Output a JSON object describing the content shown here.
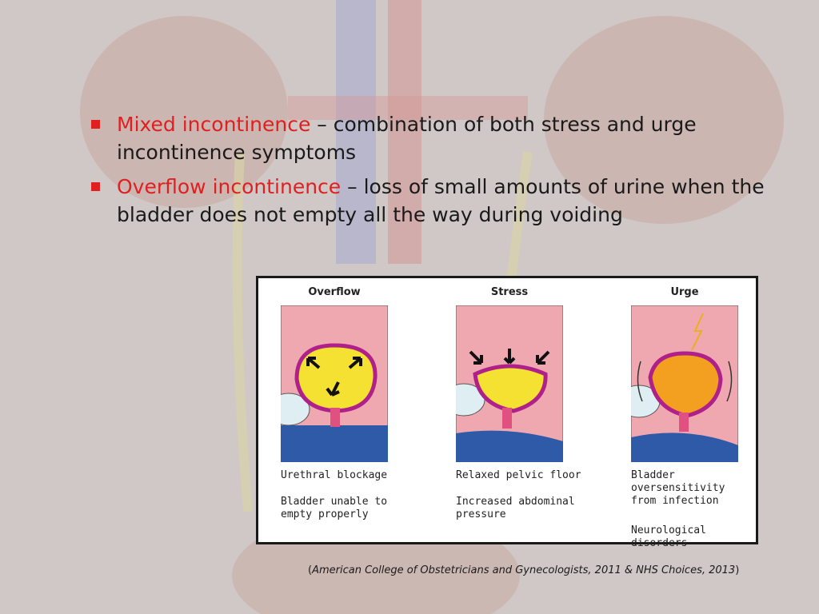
{
  "bullets": [
    {
      "term": "Mixed incontinence",
      "text": " – combination of both stress and urge incontinence symptoms"
    },
    {
      "term": "Overflow incontinence",
      "text": " – loss of small amounts of urine when the bladder does not empty all the way during voiding"
    }
  ],
  "figure": {
    "panels": [
      {
        "title": "Overflow",
        "cause": "Urethral blockage",
        "effect": "Bladder unable to\nempty properly"
      },
      {
        "title": "Stress",
        "cause": "Relaxed pelvic floor",
        "effect": "Increased abdominal\npressure"
      },
      {
        "title": "Urge",
        "cause": "Bladder\noversensitivity\nfrom infection",
        "effect": "Neurological\ndisorders"
      }
    ]
  },
  "citation": {
    "open": "(",
    "text": "American College of Obstetricians and Gynecologists, 2011 & NHS Choices, 2013",
    "close": ")"
  },
  "colors": {
    "accent": "#e02020",
    "bladder_fill": "#f5e132",
    "tissue": "#f0a8b0",
    "base": "#2f5aa8"
  }
}
